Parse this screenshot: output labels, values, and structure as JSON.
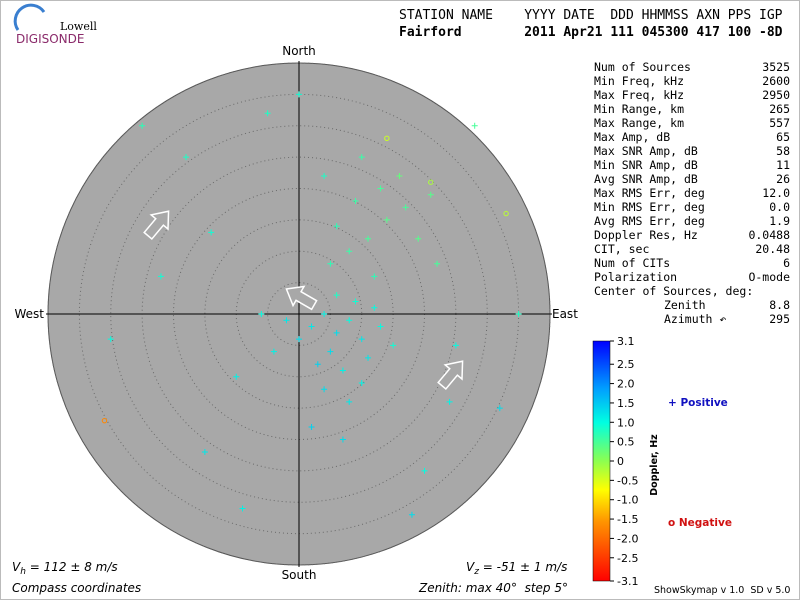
{
  "logo": {
    "top": "Lowell",
    "bottom": "DIGISONDE"
  },
  "header": {
    "line1": "STATION NAME    YYYY DATE  DDD HHMMSS AXN PPS IGP",
    "line2": "Fairford        2011 Apr21 111 045300 417 100 -8D"
  },
  "stats": {
    "rows": [
      [
        "Num of Sources",
        "3525"
      ],
      [
        "Min Freq, kHz",
        "2600"
      ],
      [
        "Max Freq, kHz",
        "2950"
      ],
      [
        "Min Range, km",
        "265"
      ],
      [
        "Max Range, km",
        "557"
      ],
      [
        "Max Amp, dB",
        "65"
      ],
      [
        "Max SNR Amp, dB",
        "58"
      ],
      [
        "Min SNR Amp, dB",
        "11"
      ],
      [
        "Avg SNR Amp, dB",
        "26"
      ],
      [
        "Max RMS Err, deg",
        "12.0"
      ],
      [
        "Min RMS Err, deg",
        "0.0"
      ],
      [
        "Avg RMS Err, deg",
        "1.9"
      ],
      [
        "Doppler Res, Hz",
        "0.0488"
      ],
      [
        "CIT, sec",
        "20.48"
      ],
      [
        "Num of CITs",
        "6"
      ],
      [
        "Polarization",
        "O-mode"
      ]
    ],
    "center": {
      "title": "Center of Sources, deg:",
      "rows": [
        [
          "Zenith",
          "8.8"
        ],
        [
          "Azimuth ↶",
          "295"
        ]
      ]
    }
  },
  "chart_data": {
    "type": "scatter",
    "directions": {
      "north": "North",
      "south": "South",
      "east": "East",
      "west": "West"
    },
    "xlim": [
      -40,
      40
    ],
    "ylim": [
      -40,
      40
    ],
    "rings": [
      5,
      10,
      15,
      20,
      25,
      30,
      35,
      40
    ],
    "series": [
      {
        "x": [
          2,
          4,
          6,
          8,
          10,
          5,
          3,
          7,
          9,
          12,
          1,
          0,
          -2,
          11,
          6,
          13,
          4,
          8,
          2,
          -4,
          -6,
          15,
          7,
          10,
          5,
          8,
          11,
          14,
          17,
          9,
          13,
          6,
          19,
          16,
          4,
          21,
          12,
          10,
          22,
          -14,
          -18,
          -22,
          -10,
          -15,
          -9,
          20,
          25,
          32,
          -25,
          -5,
          28,
          -30,
          18,
          0,
          35,
          24,
          -31,
          33,
          21,
          14
        ],
        "y": [
          -2,
          0,
          -3,
          -1,
          -4,
          -6,
          -8,
          -9,
          2,
          1,
          2,
          -4,
          -1,
          -7,
          3,
          -2,
          -12,
          -14,
          -18,
          -6,
          0,
          -5,
          -20,
          -11,
          8,
          10,
          12,
          15,
          17,
          18,
          20,
          14,
          12,
          22,
          22,
          19,
          6,
          25,
          8,
          13,
          25,
          6,
          -10,
          -22,
          -31,
          -25,
          -5,
          -15,
          30,
          32,
          30,
          -4,
          -32,
          35,
          0,
          -14,
          -17,
          16,
          21,
          28
        ],
        "doppler": [
          1.2,
          1.1,
          1.3,
          1.0,
          1.2,
          1.3,
          1.4,
          1.1,
          0.9,
          1.0,
          1.1,
          1.3,
          1.2,
          1.2,
          0.8,
          1.0,
          1.3,
          1.2,
          1.4,
          1.1,
          1.0,
          0.9,
          1.3,
          1.1,
          0.7,
          0.6,
          0.5,
          0.4,
          0.5,
          0.6,
          0.5,
          0.7,
          0.4,
          0.3,
          0.8,
          0.4,
          0.7,
          0.6,
          0.5,
          0.9,
          0.8,
          0.9,
          1.1,
          1.2,
          1.1,
          1.0,
          1.0,
          1.3,
          0.7,
          0.8,
          0.5,
          1.0,
          1.3,
          0.9,
          0.8,
          1.1,
          -1.7,
          -0.3,
          -0.2,
          -0.4
        ]
      }
    ],
    "colorbar": {
      "label": "Doppler, Hz",
      "lim": [
        -3.1,
        3.1
      ],
      "ticks": [
        3.1,
        2.5,
        {
          "value": 2,
          "label": "2.0"
        },
        1.5,
        {
          "value": 1,
          "label": "1.0"
        },
        0.5,
        0,
        -0.5,
        {
          "value": -1,
          "label": "-1.0"
        },
        -1.5,
        {
          "value": -2,
          "label": "-2.0"
        },
        -2.5,
        -3.1
      ]
    },
    "legend": {
      "positive": "+ Positive",
      "negative": "o Negative"
    }
  },
  "footer": {
    "vh": {
      "symbol": "V",
      "subscript": "h",
      "text": " = 112 ± 8 m/s"
    },
    "vz": {
      "symbol": "V",
      "subscript": "z",
      "text": " = -51 ± 1 m/s"
    },
    "coords": "Compass coordinates",
    "zenith": "Zenith: max 40°  step 5°",
    "version": "ShowSkymap v 1.0  SD v 5.0"
  }
}
